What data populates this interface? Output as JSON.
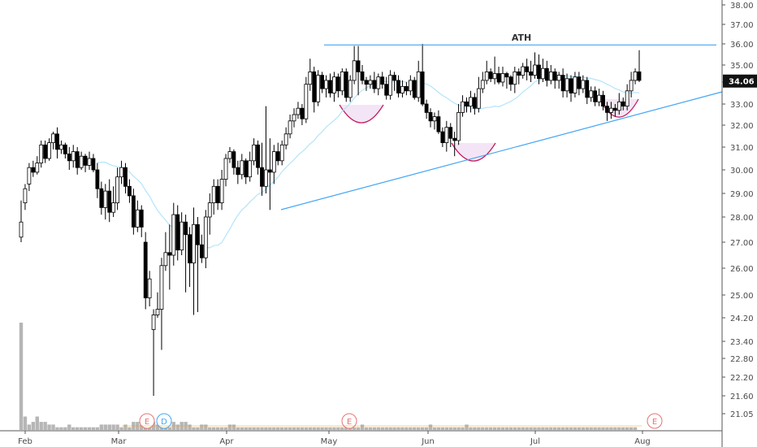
{
  "chart_data": {
    "type": "candlestick",
    "price_axis": {
      "tick_labels": [
        "38.00",
        "37.00",
        "36.00",
        "35.00",
        "34.00",
        "33.00",
        "32.00",
        "31.00",
        "30.00",
        "29.00",
        "28.00",
        "27.00",
        "26.00",
        "25.00",
        "24.20",
        "23.40",
        "22.80",
        "22.20",
        "21.60",
        "21.05"
      ],
      "scale": "log"
    },
    "last_price": "34.06",
    "month_labels": [
      "Feb",
      "Mar",
      "Apr",
      "May",
      "Jun",
      "Jul",
      "Aug"
    ],
    "annotations": {
      "resistance_label": "ATH",
      "resistance_level": 35.95,
      "trendline": {
        "from": {
          "date": "Apr 15",
          "price": 28.3
        },
        "to": {
          "date": "Aug",
          "price": 33.5
        }
      }
    },
    "event_markers": [
      {
        "label": "E",
        "month": "Mar",
        "color": "#e57373"
      },
      {
        "label": "D",
        "month": "Mar",
        "color": "#42a5f5"
      },
      {
        "label": "E",
        "month": "May",
        "color": "#e57373"
      },
      {
        "label": "E",
        "month": "Aug",
        "color": "#e57373"
      }
    ],
    "colors": {
      "up": "#ffffff",
      "down": "#000000",
      "wick": "#000000",
      "line": "#42a5f5",
      "cup_fill": "#f3e5f5",
      "cup_stroke": "#c2185b",
      "ma": "#b3e5fc",
      "volume": "#9e9e9e"
    },
    "candles": [
      [
        27.2,
        27.8,
        27.0,
        28.7
      ],
      [
        28.6,
        29.2,
        28.3,
        29.4
      ],
      [
        29.4,
        30.1,
        29.1,
        30.3
      ],
      [
        30.1,
        29.9,
        29.7,
        30.4
      ],
      [
        29.9,
        30.3,
        29.8,
        30.6
      ],
      [
        30.3,
        31.1,
        30.1,
        31.3
      ],
      [
        31.1,
        30.5,
        30.3,
        31.3
      ],
      [
        30.5,
        31.2,
        30.4,
        31.4
      ],
      [
        31.2,
        31.6,
        30.9,
        31.7
      ],
      [
        31.6,
        30.9,
        30.5,
        31.9
      ],
      [
        30.9,
        31.1,
        30.7,
        31.3
      ],
      [
        31.1,
        30.7,
        30.5,
        31.2
      ],
      [
        30.7,
        30.4,
        30.0,
        31.0
      ],
      [
        30.4,
        30.8,
        30.1,
        31.1
      ],
      [
        30.8,
        30.1,
        29.8,
        31.0
      ],
      [
        30.1,
        30.6,
        30.0,
        30.8
      ],
      [
        30.6,
        30.2,
        29.9,
        30.7
      ],
      [
        30.2,
        30.5,
        30.0,
        30.8
      ],
      [
        30.5,
        30.0,
        29.9,
        30.7
      ],
      [
        30.0,
        29.2,
        28.8,
        30.3
      ],
      [
        29.2,
        28.4,
        28.1,
        29.5
      ],
      [
        28.4,
        29.1,
        27.9,
        29.4
      ],
      [
        29.1,
        28.2,
        27.8,
        29.6
      ],
      [
        28.2,
        28.6,
        28.0,
        29.3
      ],
      [
        28.6,
        29.7,
        28.3,
        30.1
      ],
      [
        29.7,
        30.1,
        29.4,
        30.4
      ],
      [
        30.1,
        29.3,
        29.0,
        30.3
      ],
      [
        29.3,
        28.9,
        28.6,
        29.6
      ],
      [
        28.9,
        27.6,
        27.3,
        29.2
      ],
      [
        27.6,
        28.3,
        27.4,
        28.7
      ],
      [
        28.3,
        27.6,
        27.2,
        28.5
      ],
      [
        27.0,
        24.9,
        24.5,
        27.4
      ],
      [
        24.9,
        25.6,
        24.6,
        25.9
      ],
      [
        23.8,
        24.3,
        21.6,
        24.5
      ],
      [
        24.3,
        24.5,
        24.2,
        25.1
      ],
      [
        24.5,
        26.1,
        23.1,
        26.4
      ],
      [
        26.1,
        26.6,
        25.9,
        27.4
      ],
      [
        26.6,
        26.5,
        25.2,
        27.7
      ],
      [
        26.5,
        28.1,
        26.1,
        28.6
      ],
      [
        28.1,
        26.7,
        26.3,
        28.5
      ],
      [
        26.7,
        27.8,
        26.5,
        28.2
      ],
      [
        27.8,
        27.3,
        25.1,
        28.1
      ],
      [
        27.3,
        26.2,
        25.3,
        27.6
      ],
      [
        26.2,
        27.7,
        24.3,
        28.4
      ],
      [
        27.7,
        26.9,
        24.4,
        28.0
      ],
      [
        26.9,
        26.4,
        26.2,
        27.3
      ],
      [
        26.4,
        28.0,
        26.0,
        28.3
      ],
      [
        28.0,
        28.6,
        27.3,
        29.0
      ],
      [
        28.6,
        29.3,
        28.1,
        29.6
      ],
      [
        29.3,
        28.6,
        28.3,
        29.6
      ],
      [
        28.6,
        29.6,
        28.3,
        30.0
      ],
      [
        29.6,
        30.5,
        29.3,
        30.7
      ],
      [
        30.5,
        30.8,
        30.3,
        31.0
      ],
      [
        30.8,
        30.1,
        29.8,
        30.9
      ],
      [
        30.1,
        29.8,
        29.4,
        30.4
      ],
      [
        29.8,
        30.4,
        29.6,
        30.7
      ],
      [
        30.4,
        29.7,
        29.4,
        30.5
      ],
      [
        29.7,
        30.4,
        29.5,
        30.8
      ],
      [
        30.4,
        31.1,
        30.2,
        31.4
      ],
      [
        31.1,
        30.1,
        29.8,
        31.3
      ],
      [
        30.1,
        29.3,
        28.9,
        31.2
      ],
      [
        29.3,
        30.0,
        29.0,
        32.9
      ],
      [
        30.0,
        29.9,
        28.3,
        31.4
      ],
      [
        29.9,
        30.8,
        29.4,
        31.1
      ],
      [
        30.8,
        30.4,
        30.2,
        31.2
      ],
      [
        30.4,
        31.1,
        30.2,
        31.3
      ],
      [
        31.1,
        31.6,
        30.9,
        31.9
      ],
      [
        31.6,
        32.2,
        31.4,
        32.5
      ],
      [
        32.2,
        32.5,
        31.9,
        32.8
      ],
      [
        32.5,
        32.8,
        32.3,
        33.1
      ],
      [
        32.8,
        32.3,
        32.0,
        33.0
      ],
      [
        32.3,
        33.9,
        32.1,
        34.3
      ],
      [
        33.9,
        34.6,
        33.6,
        35.3
      ],
      [
        34.6,
        33.1,
        32.6,
        34.9
      ],
      [
        33.1,
        34.4,
        32.9,
        34.7
      ],
      [
        34.4,
        33.7,
        33.5,
        34.6
      ],
      [
        33.7,
        34.1,
        33.3,
        34.4
      ],
      [
        34.1,
        33.5,
        33.3,
        34.5
      ],
      [
        33.5,
        34.3,
        33.1,
        34.6
      ],
      [
        34.3,
        33.6,
        33.3,
        34.5
      ],
      [
        33.6,
        34.6,
        33.4,
        34.8
      ],
      [
        34.6,
        33.3,
        33.1,
        34.8
      ],
      [
        33.3,
        34.1,
        33.1,
        34.4
      ],
      [
        34.1,
        35.2,
        33.9,
        35.9
      ],
      [
        35.2,
        34.6,
        33.4,
        35.9
      ],
      [
        34.6,
        34.1,
        33.9,
        35.0
      ],
      [
        34.1,
        33.9,
        33.6,
        34.3
      ],
      [
        33.9,
        34.1,
        33.7,
        34.4
      ],
      [
        34.1,
        33.7,
        33.5,
        34.6
      ],
      [
        33.7,
        34.3,
        33.4,
        34.5
      ],
      [
        34.3,
        33.9,
        33.7,
        34.6
      ],
      [
        33.9,
        33.4,
        33.2,
        34.3
      ],
      [
        33.4,
        34.4,
        33.2,
        34.7
      ],
      [
        34.4,
        34.1,
        33.6,
        34.6
      ],
      [
        34.1,
        33.5,
        33.3,
        34.4
      ],
      [
        33.5,
        33.8,
        33.3,
        34.1
      ],
      [
        33.8,
        33.6,
        33.4,
        34.0
      ],
      [
        33.6,
        34.1,
        33.4,
        34.4
      ],
      [
        34.1,
        33.3,
        33.2,
        34.3
      ],
      [
        33.3,
        34.6,
        33.1,
        35.2
      ],
      [
        34.6,
        33.0,
        32.9,
        36.0
      ],
      [
        33.0,
        32.6,
        32.3,
        33.2
      ],
      [
        32.6,
        32.2,
        31.9,
        32.8
      ],
      [
        32.2,
        32.4,
        31.8,
        32.6
      ],
      [
        32.4,
        31.7,
        31.6,
        32.7
      ],
      [
        31.7,
        31.2,
        31.0,
        31.9
      ],
      [
        31.2,
        31.9,
        30.8,
        32.2
      ],
      [
        31.9,
        31.4,
        31.0,
        32.1
      ],
      [
        31.4,
        31.3,
        30.6,
        31.7
      ],
      [
        31.3,
        32.6,
        31.1,
        33.0
      ],
      [
        32.6,
        33.1,
        32.4,
        33.4
      ],
      [
        33.1,
        32.9,
        32.6,
        33.3
      ],
      [
        32.9,
        33.3,
        32.6,
        33.6
      ],
      [
        33.3,
        32.8,
        32.5,
        33.5
      ],
      [
        32.8,
        33.7,
        32.6,
        34.3
      ],
      [
        33.7,
        34.1,
        33.5,
        34.6
      ],
      [
        34.1,
        34.6,
        33.9,
        35.2
      ],
      [
        34.6,
        34.2,
        34.0,
        34.8
      ],
      [
        34.2,
        34.5,
        33.9,
        35.4
      ],
      [
        34.5,
        34.0,
        33.9,
        34.9
      ],
      [
        34.0,
        34.5,
        33.8,
        34.9
      ],
      [
        34.5,
        34.3,
        33.7,
        34.6
      ],
      [
        34.3,
        33.9,
        33.6,
        34.4
      ],
      [
        33.9,
        34.6,
        33.5,
        34.9
      ],
      [
        34.6,
        34.4,
        33.9,
        34.8
      ],
      [
        34.4,
        34.9,
        34.2,
        35.1
      ],
      [
        34.9,
        34.6,
        34.1,
        35.3
      ],
      [
        34.6,
        34.4,
        34.0,
        35.2
      ],
      [
        34.4,
        35.0,
        34.2,
        35.6
      ],
      [
        35.0,
        34.2,
        33.9,
        35.5
      ],
      [
        34.2,
        34.8,
        34.0,
        35.3
      ],
      [
        34.8,
        34.1,
        33.8,
        35.2
      ],
      [
        34.1,
        34.6,
        33.9,
        35.0
      ],
      [
        34.6,
        34.1,
        33.7,
        34.8
      ],
      [
        34.1,
        34.4,
        33.7,
        34.6
      ],
      [
        34.4,
        33.6,
        33.3,
        34.8
      ],
      [
        33.6,
        34.2,
        33.3,
        34.5
      ],
      [
        34.2,
        33.5,
        33.1,
        34.4
      ],
      [
        33.5,
        34.3,
        33.3,
        34.6
      ],
      [
        34.3,
        33.7,
        33.4,
        34.6
      ],
      [
        33.7,
        34.1,
        33.5,
        34.4
      ],
      [
        34.1,
        33.3,
        33.0,
        34.3
      ],
      [
        33.3,
        33.6,
        33.1,
        33.8
      ],
      [
        33.6,
        33.1,
        32.9,
        33.8
      ],
      [
        33.1,
        33.4,
        32.9,
        33.7
      ],
      [
        33.4,
        32.9,
        32.7,
        33.6
      ],
      [
        32.9,
        32.6,
        32.2,
        33.1
      ],
      [
        32.6,
        32.8,
        32.3,
        33.1
      ],
      [
        32.8,
        32.7,
        32.4,
        33.0
      ],
      [
        32.7,
        33.1,
        32.5,
        33.5
      ],
      [
        33.1,
        32.9,
        32.7,
        33.3
      ],
      [
        32.9,
        33.6,
        32.7,
        33.9
      ],
      [
        33.6,
        34.1,
        33.3,
        34.6
      ],
      [
        34.1,
        34.6,
        33.9,
        34.8
      ],
      [
        34.6,
        34.1,
        34.0,
        35.7
      ]
    ],
    "volume": [
      4.0,
      0.5,
      0.2,
      0.3,
      0.5,
      0.3,
      0.3,
      0.2,
      0.2,
      0.1,
      0.1,
      0.1,
      0.2,
      0.1,
      0.1,
      0.1,
      0.1,
      0.1,
      0.1,
      0.1,
      0.2,
      0.2,
      0.2,
      0.2,
      0.2,
      0.1,
      0.2,
      0.1,
      0.3,
      0.3,
      0.2,
      0.1,
      0.2,
      0.3,
      0.2,
      0.2,
      0.3,
      0.1,
      0.3,
      0.2,
      0.3,
      0.3,
      0.2,
      0.1,
      0.1,
      0.2,
      0.2,
      0.1,
      0.1,
      0.1,
      0.1,
      0.1,
      0.2,
      0.2,
      0.1,
      0.1,
      0.1,
      0.1,
      0.1,
      0.1,
      0.1,
      0.1,
      0.1,
      0.1,
      0.1,
      0.1,
      0.1,
      0.1,
      0.1,
      0.1,
      0.1,
      0.1,
      0.1,
      0.1,
      0.1,
      0.1,
      0.1,
      0.1,
      0.1,
      0.1,
      0.1,
      0.1,
      0.1,
      0.1,
      0.1,
      0.2,
      0.1,
      0.1,
      0.1,
      0.1,
      0.1,
      0.1,
      0.1,
      0.1,
      0.1,
      0.1,
      0.1,
      0.1,
      0.1,
      0.1,
      0.1,
      0.1,
      0.2,
      0.1,
      0.1,
      0.1,
      0.1,
      0.1,
      0.1,
      0.1,
      0.1,
      0.2,
      0.1,
      0.1,
      0.1,
      0.1,
      0.1,
      0.1,
      0.1,
      0.1,
      0.1,
      0.1,
      0.1,
      0.1,
      0.1,
      0.1,
      0.1,
      0.1,
      0.1,
      0.1,
      0.1,
      0.1,
      0.1,
      0.1,
      0.1,
      0.1,
      0.1,
      0.1,
      0.1,
      0.1,
      0.1,
      0.1,
      0.1,
      0.1,
      0.1,
      0.1,
      0.1,
      0.1,
      0.1,
      0.1,
      0.1,
      0.1,
      0.1,
      0.1
    ]
  }
}
